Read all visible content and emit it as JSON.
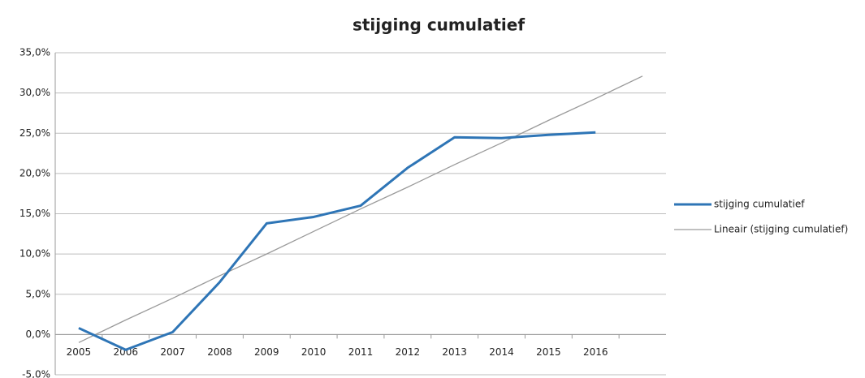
{
  "chart_data": {
    "type": "line",
    "title": "stijging cumulatief",
    "categories": [
      "2005",
      "2006",
      "2007",
      "2008",
      "2009",
      "2010",
      "2011",
      "2012",
      "2013",
      "2014",
      "2015",
      "2016",
      null
    ],
    "series": [
      {
        "name": "stijging cumulatief",
        "color": "#2e75b6",
        "values": [
          0.8,
          -1.9,
          0.3,
          6.5,
          13.8,
          14.6,
          16.0,
          20.7,
          24.5,
          24.4,
          24.8,
          25.1,
          null
        ]
      },
      {
        "name": "Lineair (stijging cumulatief)",
        "color": "#9a9a9a",
        "values": [
          -1.0,
          1.8,
          4.5,
          7.3,
          10.0,
          12.8,
          15.6,
          18.3,
          21.1,
          23.8,
          26.6,
          29.3,
          32.1
        ]
      }
    ],
    "ylim": [
      -5,
      35
    ],
    "yticks": [
      {
        "value": -5,
        "label": "-5,0%"
      },
      {
        "value": 0,
        "label": "0,0%"
      },
      {
        "value": 5,
        "label": "5,0%"
      },
      {
        "value": 10,
        "label": "10,0%"
      },
      {
        "value": 15,
        "label": "15,0%"
      },
      {
        "value": 20,
        "label": "20,0%"
      },
      {
        "value": 25,
        "label": "25,0%"
      },
      {
        "value": 30,
        "label": "30,0%"
      },
      {
        "value": 35,
        "label": "35,0%"
      }
    ],
    "grid": true,
    "legend": "right"
  }
}
